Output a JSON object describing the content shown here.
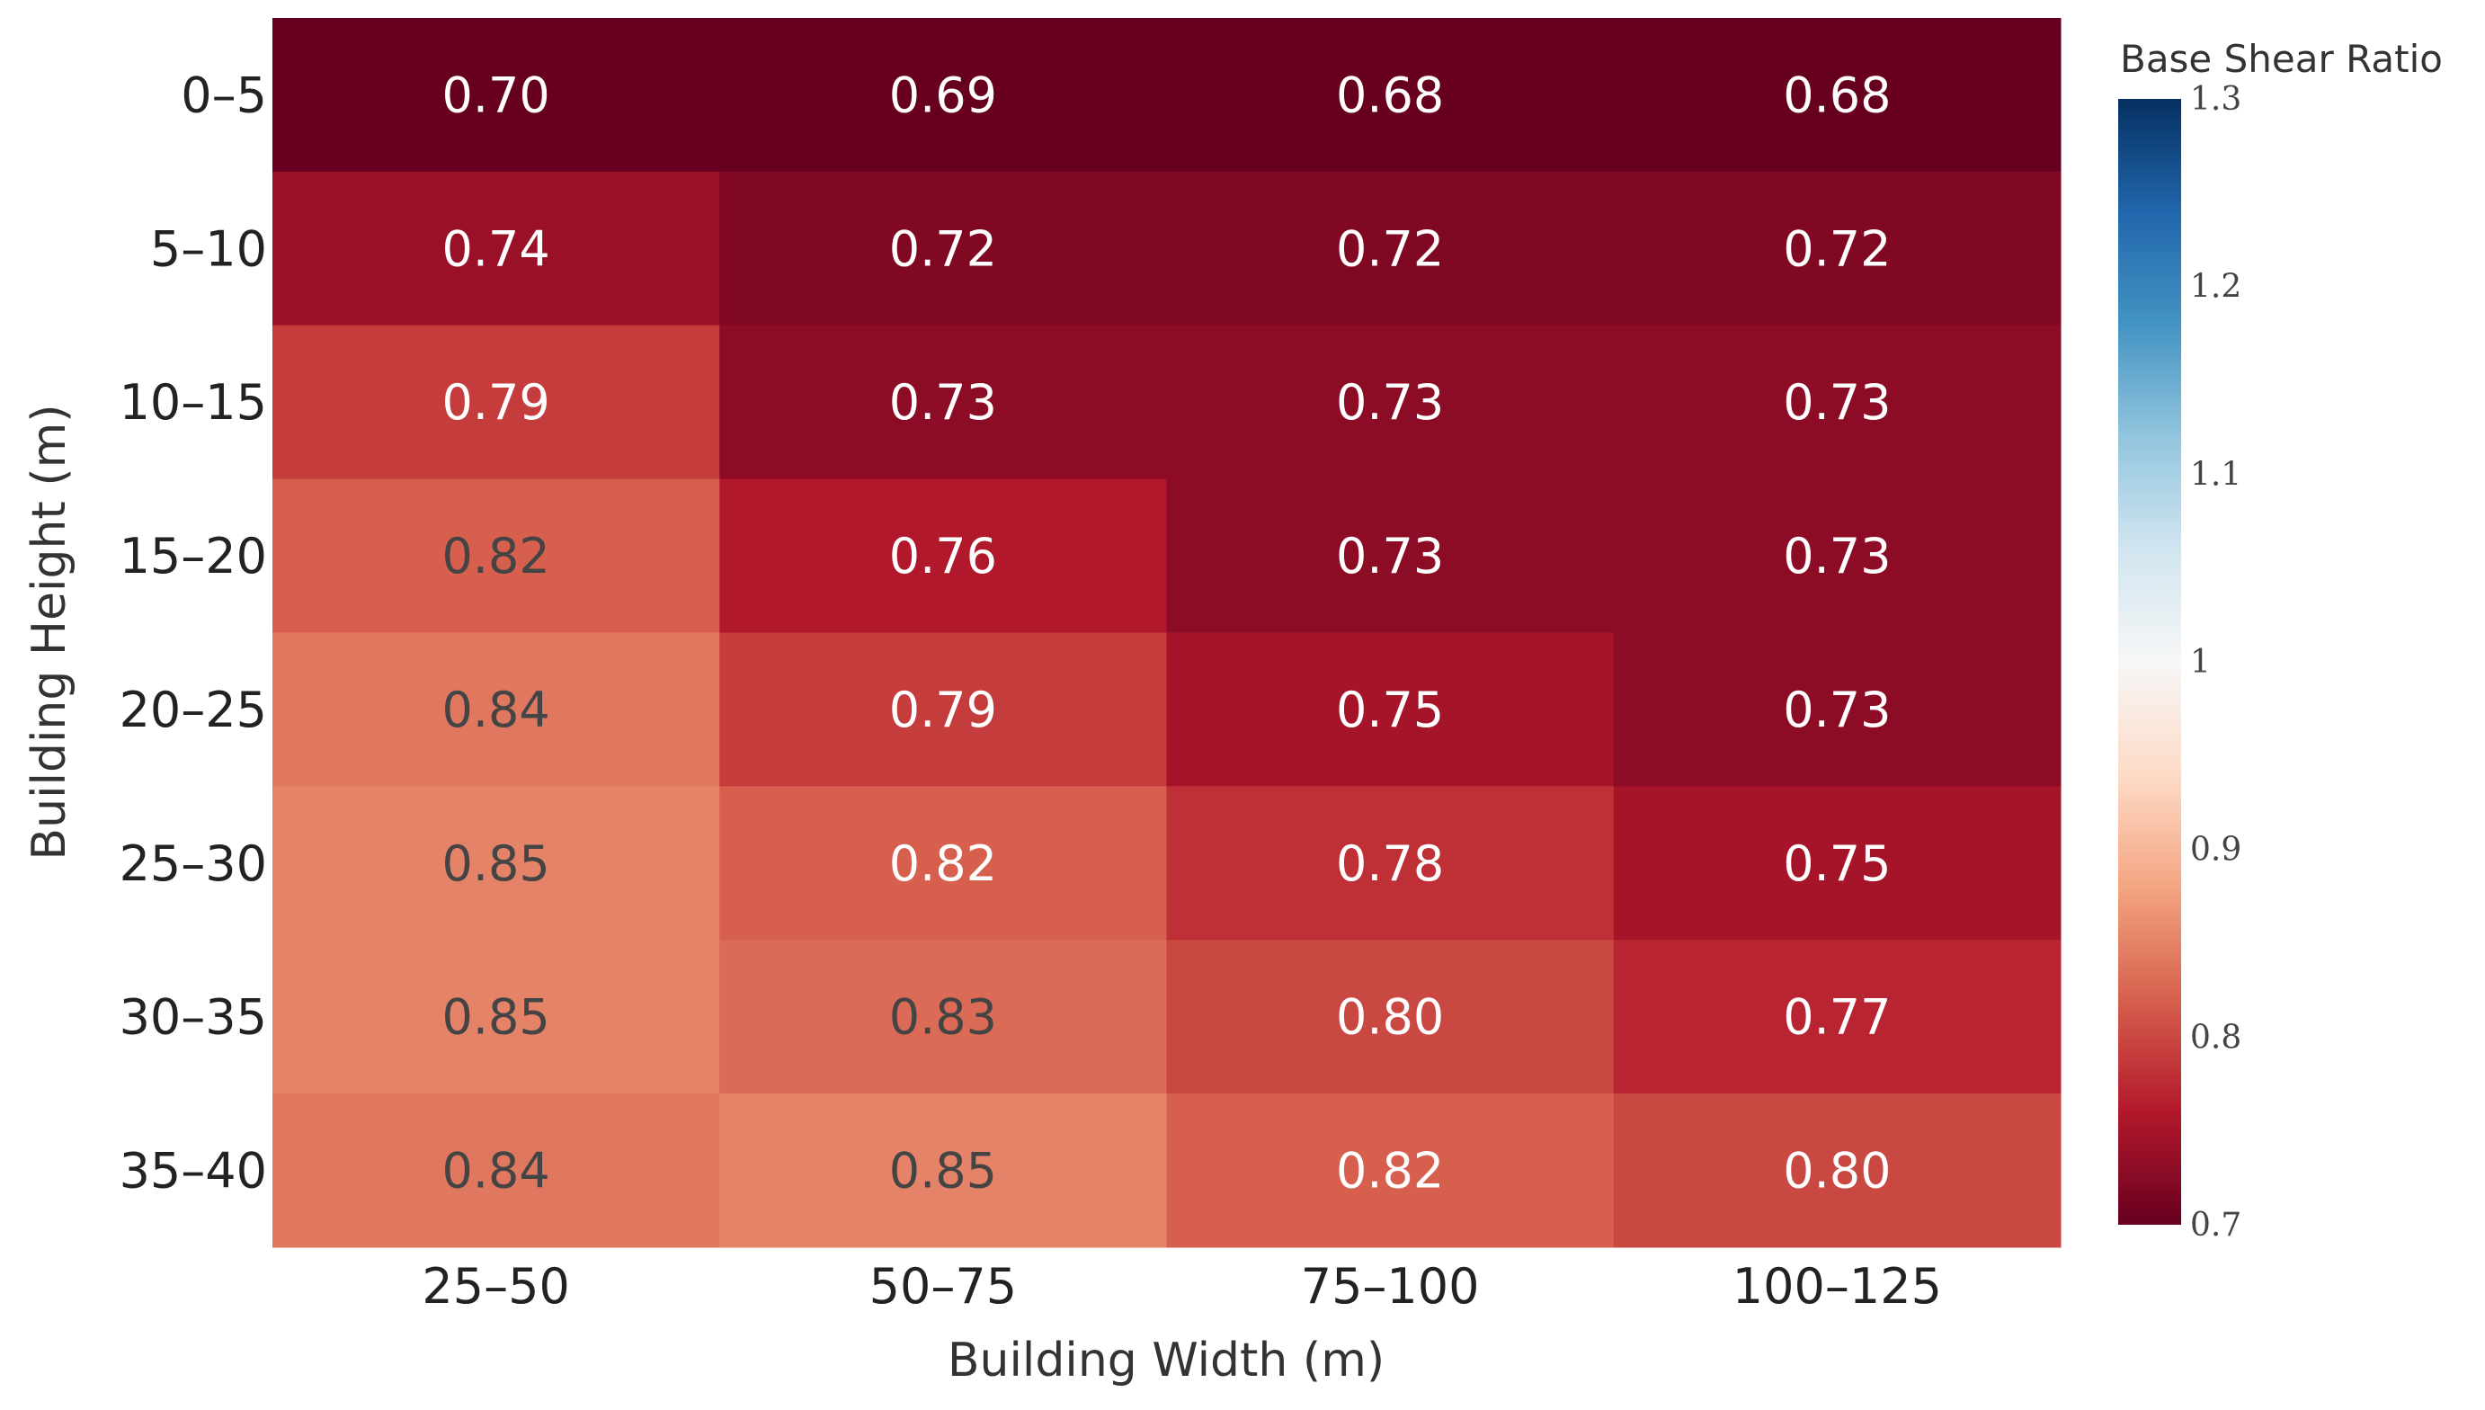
{
  "chart_data": {
    "type": "heatmap",
    "title": "",
    "xlabel": "Building Width (m)",
    "ylabel": "Building Height (m)",
    "x_categories": [
      "25–50",
      "50–75",
      "75–100",
      "100–125"
    ],
    "y_categories": [
      "0–5",
      "5–10",
      "10–15",
      "15–20",
      "20–25",
      "25–30",
      "30–35",
      "35–40"
    ],
    "values": [
      [
        0.7,
        0.69,
        0.68,
        0.68
      ],
      [
        0.74,
        0.72,
        0.72,
        0.72
      ],
      [
        0.79,
        0.73,
        0.73,
        0.73
      ],
      [
        0.82,
        0.76,
        0.73,
        0.73
      ],
      [
        0.84,
        0.79,
        0.75,
        0.73
      ],
      [
        0.85,
        0.82,
        0.78,
        0.75
      ],
      [
        0.85,
        0.83,
        0.8,
        0.77
      ],
      [
        0.84,
        0.85,
        0.82,
        0.8
      ]
    ],
    "labels": [
      [
        "0.70",
        "0.69",
        "0.68",
        "0.68"
      ],
      [
        "0.74",
        "0.72",
        "0.72",
        "0.72"
      ],
      [
        "0.79",
        "0.73",
        "0.73",
        "0.73"
      ],
      [
        "0.82",
        "0.76",
        "0.73",
        "0.73"
      ],
      [
        "0.84",
        "0.79",
        "0.75",
        "0.73"
      ],
      [
        "0.85",
        "0.82",
        "0.78",
        "0.75"
      ],
      [
        "0.85",
        "0.83",
        "0.80",
        "0.77"
      ],
      [
        "0.84",
        "0.85",
        "0.82",
        "0.80"
      ]
    ],
    "label_dark": [
      [
        false,
        false,
        false,
        false
      ],
      [
        false,
        false,
        false,
        false
      ],
      [
        false,
        false,
        false,
        false
      ],
      [
        true,
        false,
        false,
        false
      ],
      [
        true,
        false,
        false,
        false
      ],
      [
        true,
        false,
        false,
        false
      ],
      [
        true,
        true,
        false,
        false
      ],
      [
        true,
        true,
        false,
        false
      ]
    ],
    "colorscale": {
      "name": "RdBu",
      "range": [
        0.7,
        1.3
      ],
      "stops": [
        "#67001f",
        "#b2182b",
        "#d6604d",
        "#f4a582",
        "#fddbc7",
        "#f7f7f7",
        "#d1e5f0",
        "#92c5de",
        "#4393c3",
        "#2166ac",
        "#053061"
      ],
      "title": "Base Shear Ratio",
      "ticks": [
        1.3,
        1.2,
        1.1,
        1,
        0.9,
        0.8,
        0.7
      ],
      "tick_labels": [
        "1.3",
        "1.2",
        "1.1",
        "1",
        "0.9",
        "0.8",
        "0.7"
      ]
    },
    "text_colors": {
      "light": "#ffffff",
      "dark": "#444444"
    }
  }
}
